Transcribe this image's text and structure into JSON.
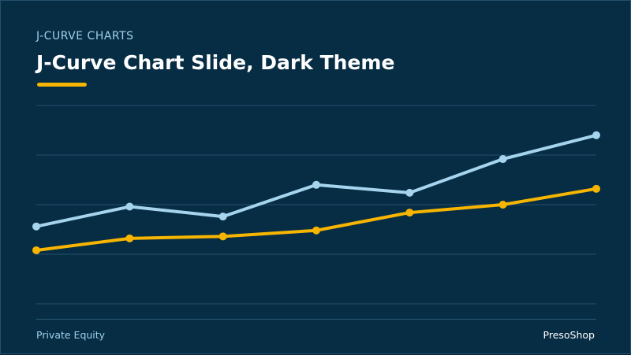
{
  "header": {
    "eyebrow": "J-CURVE CHARTS",
    "title": "J-Curve Chart Slide, Dark Theme"
  },
  "footer": {
    "left": "Private Equity",
    "right": "PresoShop"
  },
  "colors": {
    "background": "#072d45",
    "gridline": "#24506b",
    "series_light_blue": "#a6d4ee",
    "series_yellow": "#f7b500",
    "accent": "#f7b500"
  },
  "chart_data": {
    "type": "line",
    "title": "",
    "xlabel": "",
    "ylabel": "",
    "grid": true,
    "legend": "none",
    "ylim": [
      0,
      100
    ],
    "x": [
      1,
      2,
      3,
      4,
      5,
      6,
      7
    ],
    "series": [
      {
        "color": "#a6d4ee",
        "values": [
          39,
          49,
          44,
          60,
          56,
          73,
          85
        ]
      },
      {
        "color": "#f7b500",
        "values": [
          27,
          33,
          34,
          37,
          46,
          50,
          58
        ]
      }
    ]
  }
}
